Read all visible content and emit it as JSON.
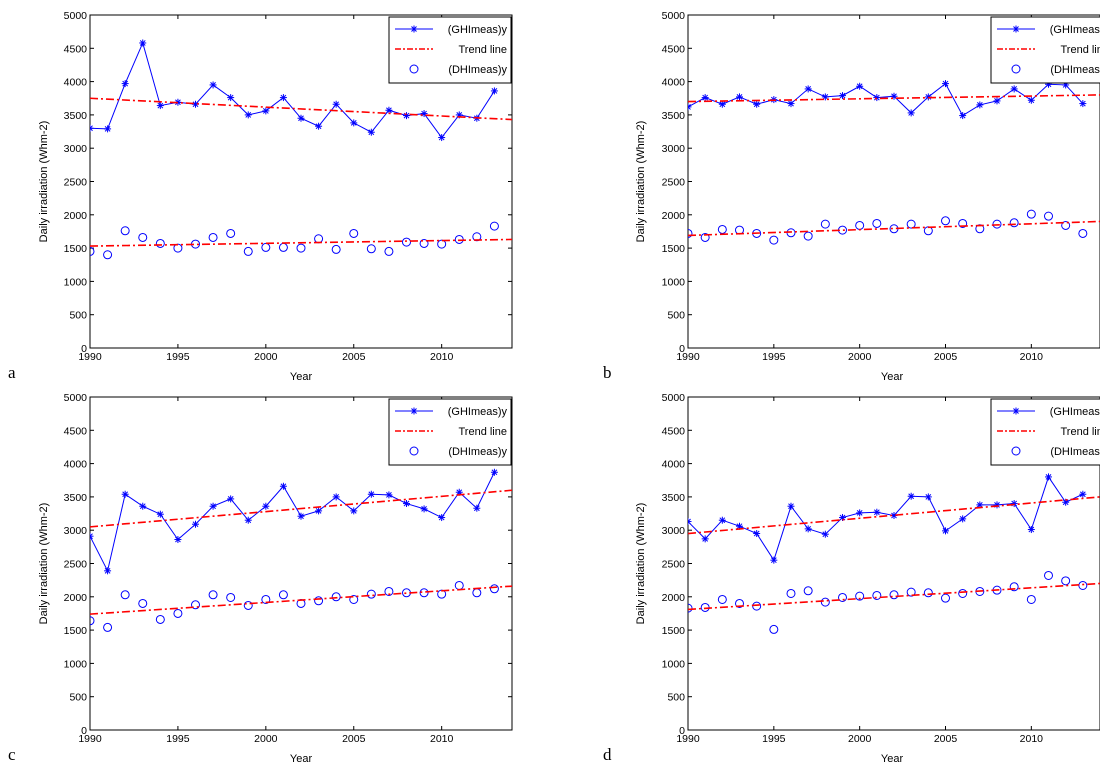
{
  "chart_data": [
    {
      "panel_label": "a",
      "type": "line",
      "xlabel": "Year",
      "ylabel": "Daily irradiation (Whm-2)",
      "xlim": [
        1990,
        2014
      ],
      "ylim": [
        0,
        5000
      ],
      "xticks": [
        1990,
        1995,
        2000,
        2005,
        2010
      ],
      "yticks": [
        0,
        500,
        1000,
        1500,
        2000,
        2500,
        3000,
        3500,
        4000,
        4500,
        5000
      ],
      "legend_position": "top-right",
      "x": [
        1990,
        1991,
        1992,
        1993,
        1994,
        1995,
        1996,
        1997,
        1998,
        1999,
        2000,
        2001,
        2002,
        2003,
        2004,
        2005,
        2006,
        2007,
        2008,
        2009,
        2010,
        2011,
        2012,
        2013
      ],
      "series": [
        {
          "name": "(GHImeas)y",
          "style": "line-star",
          "color": "#0000ff",
          "values": [
            3300,
            3290,
            3970,
            4580,
            3640,
            3690,
            3660,
            3950,
            3760,
            3500,
            3560,
            3760,
            3450,
            3330,
            3660,
            3380,
            3240,
            3570,
            3490,
            3520,
            3160,
            3500,
            3450,
            3860
          ]
        },
        {
          "name": "Trend line",
          "style": "dashdot",
          "color": "#ff0000",
          "x": [
            1990,
            2014
          ],
          "values": [
            3750,
            3430
          ]
        },
        {
          "name": "(DHImeas)y",
          "style": "circle",
          "color": "#0000ff",
          "values": [
            1450,
            1400,
            1760,
            1660,
            1570,
            1500,
            1560,
            1660,
            1720,
            1450,
            1510,
            1510,
            1500,
            1640,
            1480,
            1720,
            1490,
            1450,
            1590,
            1570,
            1560,
            1630,
            1670,
            1830
          ]
        },
        {
          "name": "",
          "style": "dashdot",
          "color": "#ff0000",
          "x": [
            1990,
            2014
          ],
          "values": [
            1530,
            1630
          ]
        }
      ]
    },
    {
      "panel_label": "b",
      "type": "line",
      "xlabel": "Year",
      "ylabel": "Daily irradiation (Whm-2)",
      "xlim": [
        1990,
        2014
      ],
      "ylim": [
        0,
        5000
      ],
      "xticks": [
        1990,
        1995,
        2000,
        2005,
        2010
      ],
      "yticks": [
        0,
        500,
        1000,
        1500,
        2000,
        2500,
        3000,
        3500,
        4000,
        4500,
        5000
      ],
      "legend_position": "top-right",
      "x": [
        1990,
        1991,
        1992,
        1993,
        1994,
        1995,
        1996,
        1997,
        1998,
        1999,
        2000,
        2001,
        2002,
        2003,
        2004,
        2005,
        2006,
        2007,
        2008,
        2009,
        2010,
        2011,
        2012,
        2013
      ],
      "series": [
        {
          "name": "(GHImeas)y",
          "style": "line-star",
          "color": "#0000ff",
          "values": [
            3620,
            3760,
            3660,
            3770,
            3660,
            3730,
            3670,
            3890,
            3770,
            3790,
            3930,
            3760,
            3780,
            3530,
            3770,
            3970,
            3490,
            3650,
            3710,
            3890,
            3720,
            3960,
            3950,
            3670
          ]
        },
        {
          "name": "Trend line",
          "style": "dashdot",
          "color": "#ff0000",
          "x": [
            1990,
            2014
          ],
          "values": [
            3700,
            3800
          ]
        },
        {
          "name": "(DHImeas)y",
          "style": "circle",
          "color": "#0000ff",
          "values": [
            1720,
            1660,
            1780,
            1770,
            1720,
            1620,
            1730,
            1680,
            1860,
            1770,
            1840,
            1870,
            1790,
            1860,
            1760,
            1910,
            1870,
            1790,
            1860,
            1880,
            2010,
            1980,
            1840,
            1720
          ]
        },
        {
          "name": "",
          "style": "dashdot",
          "color": "#ff0000",
          "x": [
            1990,
            2014
          ],
          "values": [
            1690,
            1900
          ]
        }
      ]
    },
    {
      "panel_label": "c",
      "type": "line",
      "xlabel": "Year",
      "ylabel": "Daily irradiation (Whm-2)",
      "xlim": [
        1990,
        2014
      ],
      "ylim": [
        0,
        5000
      ],
      "xticks": [
        1990,
        1995,
        2000,
        2005,
        2010
      ],
      "yticks": [
        0,
        500,
        1000,
        1500,
        2000,
        2500,
        3000,
        3500,
        4000,
        4500,
        5000
      ],
      "legend_position": "top-right",
      "x": [
        1990,
        1991,
        1992,
        1993,
        1994,
        1995,
        1996,
        1997,
        1998,
        1999,
        2000,
        2001,
        2002,
        2003,
        2004,
        2005,
        2006,
        2007,
        2008,
        2009,
        2010,
        2011,
        2012,
        2013
      ],
      "series": [
        {
          "name": "(GHImeas)y",
          "style": "line-star",
          "color": "#0000ff",
          "values": [
            2910,
            2390,
            3540,
            3360,
            3240,
            2860,
            3090,
            3360,
            3470,
            3150,
            3360,
            3660,
            3210,
            3290,
            3500,
            3290,
            3540,
            3530,
            3400,
            3320,
            3190,
            3570,
            3330,
            3870
          ]
        },
        {
          "name": "Trend line",
          "style": "dashdot",
          "color": "#ff0000",
          "x": [
            1990,
            2014
          ],
          "values": [
            3050,
            3600
          ]
        },
        {
          "name": "(DHImeas)y",
          "style": "circle",
          "color": "#0000ff",
          "values": [
            1640,
            1540,
            2030,
            1900,
            1660,
            1750,
            1880,
            2030,
            1990,
            1870,
            1960,
            2030,
            1900,
            1940,
            2000,
            1960,
            2040,
            2080,
            2060,
            2060,
            2040,
            2170,
            2060,
            2120
          ]
        },
        {
          "name": "",
          "style": "dashdot",
          "color": "#ff0000",
          "x": [
            1990,
            2014
          ],
          "values": [
            1740,
            2160
          ]
        }
      ]
    },
    {
      "panel_label": "d",
      "type": "line",
      "xlabel": "Year",
      "ylabel": "Daily irradiation (Whm-2)",
      "xlim": [
        1990,
        2014
      ],
      "ylim": [
        0,
        5000
      ],
      "xticks": [
        1990,
        1995,
        2000,
        2005,
        2010
      ],
      "yticks": [
        0,
        500,
        1000,
        1500,
        2000,
        2500,
        3000,
        3500,
        4000,
        4500,
        5000
      ],
      "legend_position": "top-right",
      "x": [
        1990,
        1991,
        1992,
        1993,
        1994,
        1995,
        1996,
        1997,
        1998,
        1999,
        2000,
        2001,
        2002,
        2003,
        2004,
        2005,
        2006,
        2007,
        2008,
        2009,
        2010,
        2011,
        2012,
        2013
      ],
      "series": [
        {
          "name": "(GHImeas)y",
          "style": "line-star",
          "color": "#0000ff",
          "values": [
            3130,
            2870,
            3150,
            3060,
            2950,
            2550,
            3360,
            3020,
            2940,
            3190,
            3260,
            3270,
            3220,
            3510,
            3500,
            2990,
            3170,
            3380,
            3380,
            3400,
            3010,
            3800,
            3420,
            3540
          ]
        },
        {
          "name": "Trend line",
          "style": "dashdot",
          "color": "#ff0000",
          "x": [
            1990,
            2014
          ],
          "values": [
            2950,
            3500
          ]
        },
        {
          "name": "(DHImeas)y",
          "style": "circle",
          "color": "#0000ff",
          "values": [
            1830,
            1840,
            1960,
            1900,
            1860,
            1510,
            2050,
            2090,
            1920,
            1990,
            2010,
            2020,
            2030,
            2070,
            2060,
            1980,
            2050,
            2080,
            2100,
            2150,
            1960,
            2320,
            2240,
            2170
          ]
        },
        {
          "name": "",
          "style": "dashdot",
          "color": "#ff0000",
          "x": [
            1990,
            2014
          ],
          "values": [
            1810,
            2200
          ]
        }
      ]
    }
  ]
}
